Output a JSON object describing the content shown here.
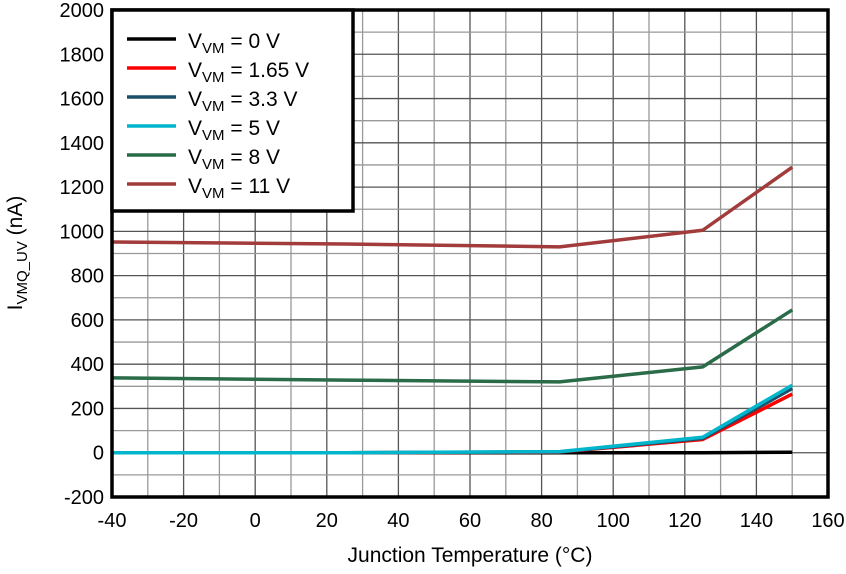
{
  "chart_data": {
    "type": "line",
    "title": "",
    "xlabel": "Junction Temperature (°C)",
    "ylabel": "I",
    "ylabel_sub": "VMQ_UV",
    "ylabel_unit": " (nA)",
    "xlim": [
      -40,
      160
    ],
    "ylim": [
      -200,
      2000
    ],
    "xticks": [
      -40,
      -20,
      0,
      20,
      40,
      60,
      80,
      100,
      120,
      140,
      160
    ],
    "yticks": [
      -200,
      0,
      200,
      400,
      600,
      800,
      1000,
      1200,
      1400,
      1600,
      1800,
      2000
    ],
    "grid": true,
    "legend_position": "top-left",
    "x": [
      -40,
      25,
      85,
      125,
      150
    ],
    "series": [
      {
        "name": "V",
        "sub": "VM",
        "rest": " = 0 V",
        "color": "#000000",
        "values": [
          0,
          0,
          0,
          0,
          2
        ]
      },
      {
        "name": "V",
        "sub": "VM",
        "rest": " = 1.65 V",
        "color": "#ff0000",
        "values": [
          0,
          0,
          3,
          60,
          265
        ]
      },
      {
        "name": "V",
        "sub": "VM",
        "rest": " = 3.3 V",
        "color": "#1b5068",
        "values": [
          0,
          0,
          4,
          65,
          290
        ]
      },
      {
        "name": "V",
        "sub": "VM",
        "rest": " = 5 V",
        "color": "#00b5cc",
        "values": [
          0,
          0,
          5,
          70,
          305
        ]
      },
      {
        "name": "V",
        "sub": "VM",
        "rest": " = 8 V",
        "color": "#2a6b48",
        "values": [
          338,
          328,
          320,
          388,
          645
        ]
      },
      {
        "name": "V",
        "sub": "VM",
        "rest": " = 11 V",
        "color": "#a23b3b",
        "values": [
          952,
          943,
          930,
          1005,
          1290
        ]
      }
    ]
  }
}
